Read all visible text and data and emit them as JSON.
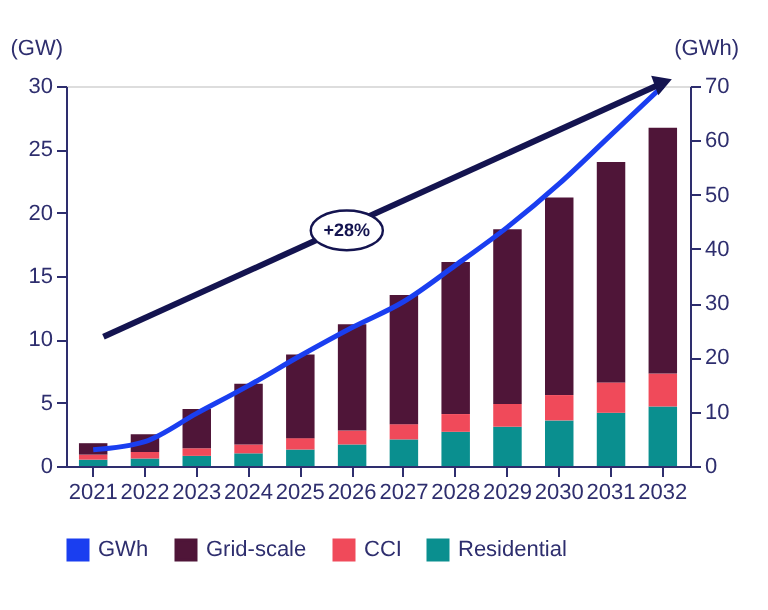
{
  "chart_data": {
    "type": "bar",
    "stacked": true,
    "ylabel": "(GW)",
    "y2label": "(GWh)",
    "categories": [
      "2021",
      "2022",
      "2023",
      "2024",
      "2025",
      "2026",
      "2027",
      "2028",
      "2029",
      "2030",
      "2031",
      "2032"
    ],
    "series": [
      {
        "name": "Residential",
        "color": "#0a8f8f",
        "values": [
          0.5,
          0.6,
          0.8,
          1.0,
          1.3,
          1.7,
          2.1,
          2.7,
          3.1,
          3.6,
          4.2,
          4.7
        ]
      },
      {
        "name": "CCI",
        "color": "#f04a5a",
        "values": [
          0.4,
          0.5,
          0.6,
          0.7,
          0.9,
          1.1,
          1.2,
          1.4,
          1.8,
          2.0,
          2.4,
          2.6
        ]
      },
      {
        "name": "Grid-scale",
        "color": "#4f1538",
        "values": [
          0.9,
          1.4,
          3.1,
          4.8,
          6.6,
          8.4,
          10.2,
          12.0,
          13.8,
          15.6,
          17.4,
          19.4
        ]
      },
      {
        "name": "GWh",
        "type": "line",
        "axis": "y2",
        "color": "#1a3ef0",
        "values": [
          3.0,
          4.5,
          9.7,
          14.8,
          20.3,
          25.5,
          30.3,
          37,
          44,
          52,
          61,
          70
        ]
      }
    ],
    "ylim": [
      0,
      30
    ],
    "yticks": [
      0,
      5,
      10,
      15,
      20,
      25,
      30
    ],
    "y2lim": [
      0,
      70
    ],
    "y2ticks": [
      0,
      10,
      20,
      30,
      40,
      50,
      60,
      70
    ],
    "annotations": [
      "+28%"
    ],
    "legend": "bottom"
  }
}
